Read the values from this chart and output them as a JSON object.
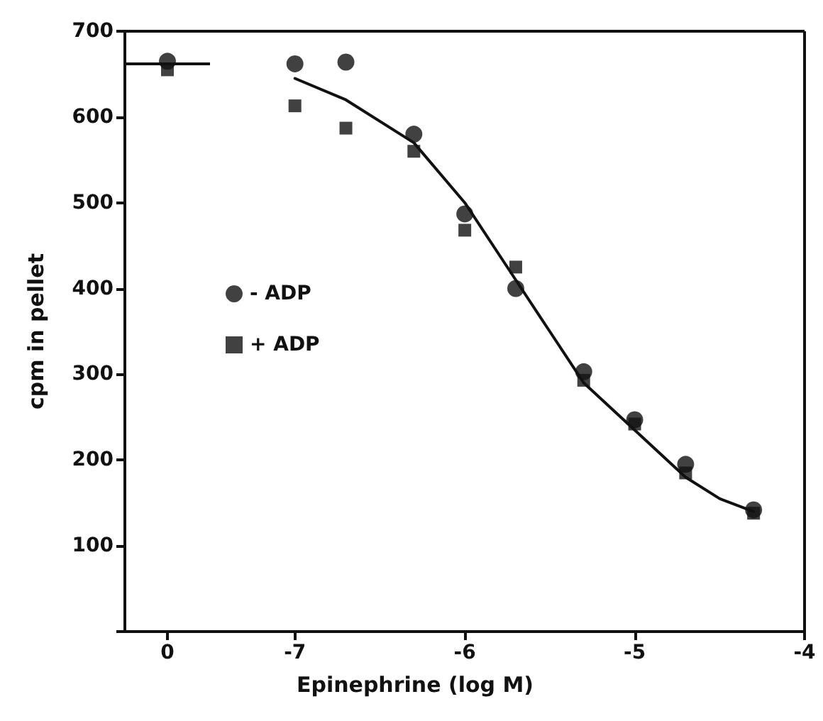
{
  "chart_data": [
    {
      "type": "scatter",
      "ylabel": "cpm in pellet",
      "categories": [
        "0"
      ],
      "ylim": [
        0,
        700
      ],
      "yticks": [
        {
          "value": 0,
          "label": null
        },
        100,
        200,
        300,
        400,
        500,
        600,
        700
      ],
      "grid": false,
      "legend": false,
      "ref_lines": [
        {
          "axis": "y",
          "value": 662,
          "color": "#111111",
          "line_style": "solid"
        }
      ],
      "series": [
        {
          "color": "#111111",
          "marker": "circle",
          "values": [
            665
          ]
        },
        {
          "color": "#111111",
          "marker": "square",
          "values": [
            655
          ]
        }
      ]
    },
    {
      "type": "scatter",
      "xlabel": "Epinephrine (log M)",
      "xlim": [
        -7.5,
        -4
      ],
      "xticks": [
        -7,
        -6,
        -5,
        -4
      ],
      "ylim": [
        0,
        700
      ],
      "tick_labels": "x",
      "grid": false,
      "legend": "left",
      "series": [
        {
          "name": "- ADP",
          "color": "#111111",
          "marker": "circle",
          "x": [
            -7,
            -6.7,
            -6.3,
            -6,
            -5.7,
            -5.3,
            -5,
            -4.7,
            -4.3
          ],
          "values": [
            662,
            664,
            580,
            487,
            400,
            303,
            247,
            195,
            142
          ]
        },
        {
          "name": "+ ADP",
          "color": "#111111",
          "marker": "square",
          "x": [
            -7,
            -6.7,
            -6.3,
            -6,
            -5.7,
            -5.3,
            -5,
            -4.7,
            -4.3
          ],
          "values": [
            613,
            587,
            560,
            468,
            425,
            293,
            242,
            185,
            138
          ]
        },
        {
          "type": "line",
          "color": "#111111",
          "marker": "none",
          "line_style": "solid",
          "x": [
            -7,
            -6.7,
            -6.3,
            -6,
            -5.7,
            -5.5,
            -5.3,
            -5,
            -4.7,
            -4.5,
            -4.3
          ],
          "values": [
            645,
            620,
            570,
            500,
            410,
            350,
            290,
            235,
            180,
            155,
            140
          ]
        }
      ]
    }
  ]
}
